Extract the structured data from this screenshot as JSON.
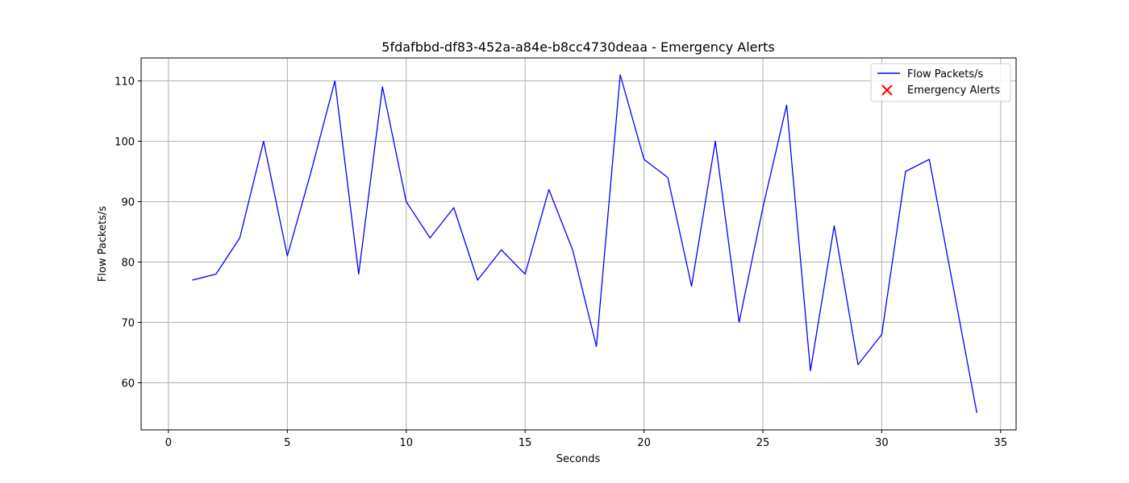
{
  "chart_data": {
    "type": "line",
    "title": "5fdafbbd-df83-452a-a84e-b8cc4730deaa - Emergency Alerts",
    "xlabel": "Seconds",
    "ylabel": "Flow Packets/s",
    "xlim": [
      -1.15,
      35.65
    ],
    "ylim": [
      52.2,
      113.8
    ],
    "xticks": [
      0,
      5,
      10,
      15,
      20,
      25,
      30,
      35
    ],
    "yticks": [
      60,
      70,
      80,
      90,
      100,
      110
    ],
    "grid": true,
    "legend_position": "top-right",
    "series": [
      {
        "name": "Flow Packets/s",
        "kind": "line",
        "color": "#0000ff",
        "x": [
          1,
          2,
          3,
          4,
          5,
          6,
          7,
          8,
          9,
          10,
          11,
          12,
          13,
          14,
          15,
          16,
          17,
          18,
          19,
          20,
          21,
          22,
          23,
          24,
          25,
          26,
          27,
          28,
          29,
          30,
          31,
          32,
          33,
          34
        ],
        "y": [
          77,
          78,
          84,
          100,
          81,
          95,
          110,
          78,
          109,
          90,
          84,
          89,
          77,
          82,
          78,
          92,
          82,
          66,
          111,
          97,
          94,
          76,
          100,
          70,
          89,
          106,
          62,
          86,
          63,
          68,
          95,
          97,
          76,
          55
        ]
      },
      {
        "name": "Emergency Alerts",
        "kind": "scatter",
        "marker": "x",
        "color": "#ff0000",
        "x": [],
        "y": []
      }
    ]
  }
}
